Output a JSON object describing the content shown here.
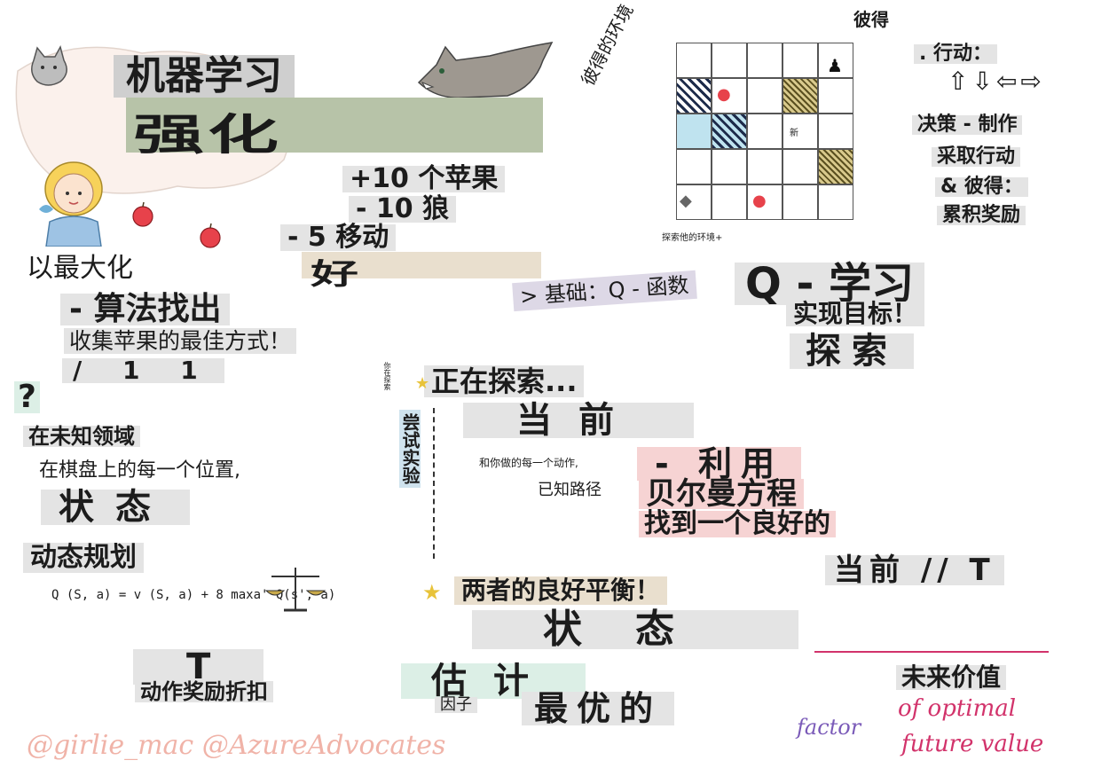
{
  "title": {
    "ml": "机器学习",
    "rl": "强化"
  },
  "rewards": [
    "+10 个苹果",
    "- 10 狼",
    "- 5 移动"
  ],
  "good": "好",
  "maximize": {
    "line1": "以最大化",
    "line2": "- 算法找出",
    "line3": "收集苹果的最佳方式！",
    "line4": "/ 1 1"
  },
  "environment": {
    "label": "彼得的环境",
    "peter": "彼得",
    "explore_note": "探索他的环境+",
    "new_label": "新"
  },
  "actions": {
    "label": ". 行动：",
    "arrows": "⇧⇩⇦⇨"
  },
  "decision": [
    "决策 - 制作",
    "采取行动",
    "& 彼得：",
    "累积奖励"
  ],
  "qlearning": {
    "basis": "> 基础：Q - 函数",
    "title": "Q - 学习",
    "goal": "实现目标！",
    "explore": "探索"
  },
  "exploring": {
    "side_note": "你在探索",
    "vertical": "尝试实验",
    "title": "正在探索...",
    "current": "当前",
    "known_path": "和你做的每一个动作,",
    "known_path2": "已知路径"
  },
  "exploit": [
    "- 利用",
    "贝尔曼方程",
    "找到一个良好的"
  ],
  "current_t": "当前 // T",
  "balance": "两者的良好平衡！",
  "state_big": "状态",
  "unknown": {
    "line1": "在未知领域",
    "line2": "在棋盘上的每一个位置,",
    "state": "状态"
  },
  "dp": {
    "title": "动态规划",
    "formula": "Q (S, a) = v (S, a) + 8 maxa' Q(s', a)"
  },
  "discount": {
    "big": "T",
    "label": "动作奖励折扣"
  },
  "estimate": {
    "big": "估计",
    "factor_cn": "因子",
    "optimal": "最优的",
    "factor_en": "factor"
  },
  "future": {
    "cn": "未来价值",
    "en1": "of optimal",
    "en2": "future value"
  },
  "credits": "@girlie_mac @AzureAdvocates"
}
